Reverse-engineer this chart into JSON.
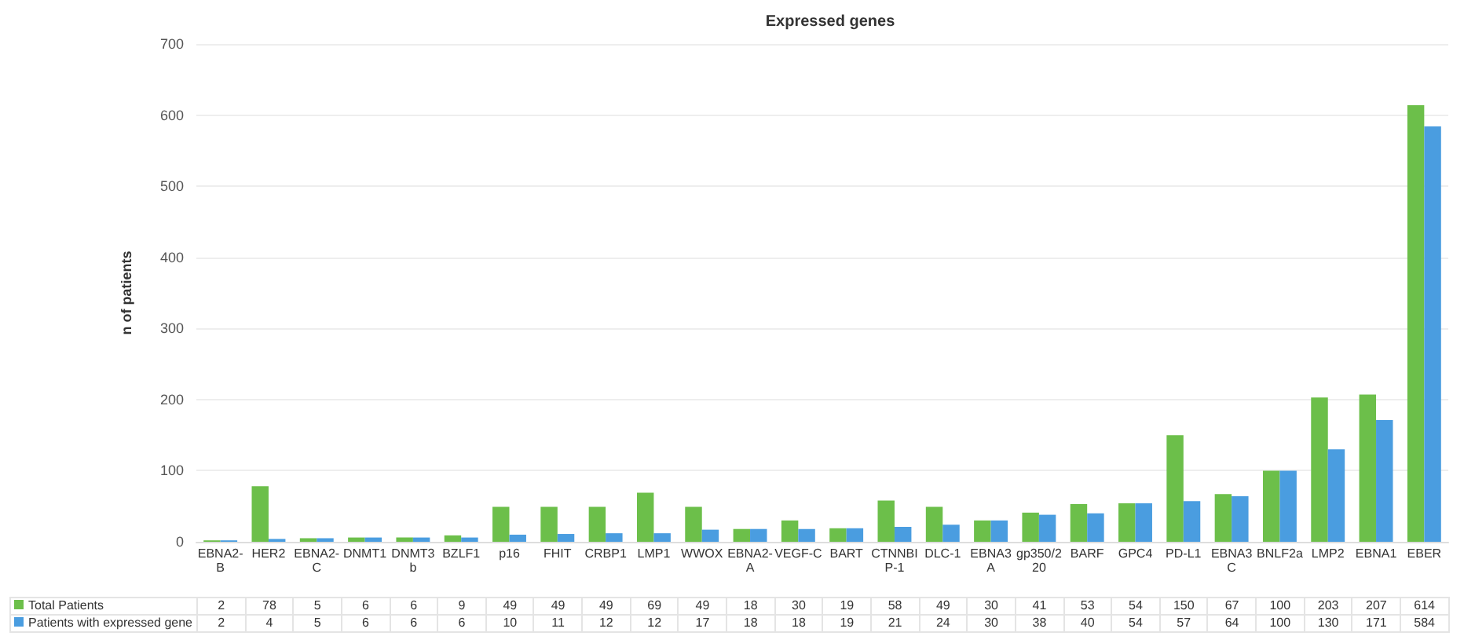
{
  "chart_data": {
    "type": "bar",
    "title": "Expressed genes",
    "ylabel": "n of patients",
    "categories": [
      "EBNA2-B",
      "HER2",
      "EBNA2-C",
      "DNMT1",
      "DNMT3b",
      "BZLF1",
      "p16",
      "FHIT",
      "CRBP1",
      "LMP1",
      "WWOX",
      "EBNA2-A",
      "VEGF-C",
      "BART",
      "CTNNBIP-1",
      "DLC-1",
      "EBNA3A",
      "gp350/220",
      "BARF",
      "GPC4",
      "PD-L1",
      "EBNA3C",
      "BNLF2a",
      "LMP2",
      "EBNA1",
      "EBER"
    ],
    "series": [
      {
        "name": "Total Patients",
        "color": "#6cbf4a",
        "values": [
          2,
          78,
          5,
          6,
          6,
          9,
          49,
          49,
          49,
          69,
          49,
          18,
          30,
          19,
          58,
          49,
          30,
          41,
          53,
          54,
          150,
          67,
          100,
          203,
          207,
          614
        ]
      },
      {
        "name": "Patients with expressed gene",
        "color": "#4a9de0",
        "values": [
          2,
          4,
          5,
          6,
          6,
          6,
          10,
          11,
          12,
          12,
          17,
          18,
          18,
          19,
          21,
          24,
          30,
          38,
          40,
          54,
          57,
          64,
          100,
          130,
          171,
          584
        ]
      }
    ],
    "ylim": [
      0,
      700
    ],
    "yticks": [
      0,
      100,
      200,
      300,
      400,
      500,
      600,
      700
    ],
    "grid": "y",
    "legend": "bottom",
    "data_labels": true
  }
}
